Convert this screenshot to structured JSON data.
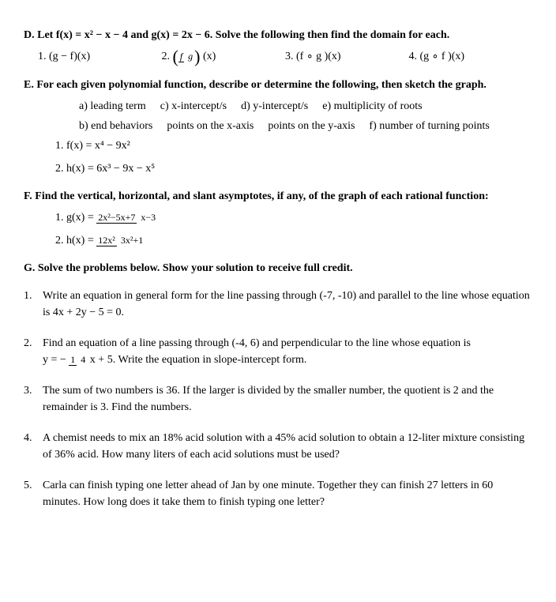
{
  "D": {
    "head": "D. Let f(x) = x² − x − 4 and g(x) = 2x − 6. Solve the following then find the domain for each.",
    "items": [
      "1.  (g − f)(x)",
      "2.",
      "3.  (f ∘ g )(x)",
      "4.  (g ∘ f )(x)"
    ],
    "frac_top": "f",
    "frac_bot": "g",
    "frac_after": "(x)"
  },
  "E": {
    "head": "E.   For each given polynomial function, describe or determine the following, then sketch the graph.",
    "cols_row1": [
      "a)  leading term",
      "c) x-intercept/s",
      "d) y-intercept/s",
      "e) multiplicity of roots"
    ],
    "cols_row2": [
      "b)  end behaviors",
      "points on the x-axis",
      "points on the y-axis",
      "f) number of turning points"
    ],
    "funcs": [
      "1.   f(x) =  x⁴ −  9x²",
      "2.   h(x) =  6x³ − 9x −  x⁵"
    ]
  },
  "F": {
    "head": "F. Find the vertical, horizontal, and slant asymptotes, if any, of the graph of each rational function:",
    "g_label": "1.  g(x) = ",
    "g_num": "2x²−5x+7",
    "g_den": "x−3",
    "h_label": "2. h(x) = ",
    "h_num": "12x²",
    "h_den": "3x²+1"
  },
  "G": {
    "head": "G.   Solve the problems below. Show your solution to receive full credit.",
    "p1_num": "1.",
    "p1": "Write an equation in general form for the line passing through (-7, -10) and parallel to the line whose equation is 4x + 2y − 5 = 0.",
    "p2_num": "2.",
    "p2a": "Find an equation of a line passing through (-4, 6) and perpendicular to the line whose equation is",
    "p2b_pre": "y = −",
    "p2b_num": "1",
    "p2b_den": "4",
    "p2b_post": "x + 5. Write the equation in slope-intercept form.",
    "p3_num": "3.",
    "p3": "The sum of two numbers is 36. If the larger is divided by the smaller number, the quotient is 2 and the remainder is 3. Find the numbers.",
    "p4_num": "4.",
    "p4": "A chemist needs to mix an 18% acid solution with a 45% acid solution to obtain a 12-liter mixture consisting of 36% acid. How many liters of each acid solutions must be used?",
    "p5_num": "5.",
    "p5": "Carla can finish typing one letter ahead of Jan by one minute. Together they can finish 27 letters in 60 minutes. How long does it take them to finish typing one letter?"
  }
}
